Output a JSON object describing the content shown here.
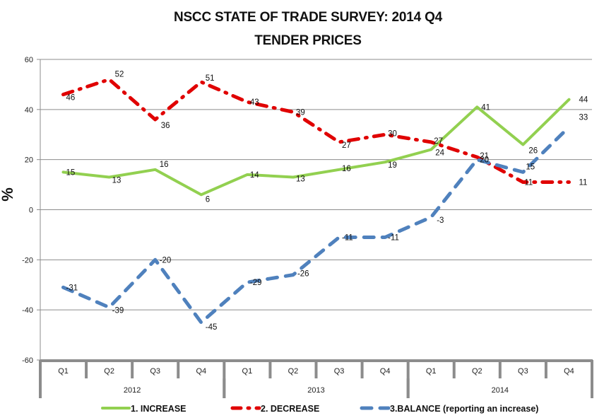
{
  "chart_data": {
    "type": "line",
    "title": "NSCC STATE OF TRADE SURVEY: 2014 Q4",
    "subtitle": "TENDER PRICES",
    "xlabel": "",
    "ylabel": "%",
    "ylim": [
      -60,
      60
    ],
    "yticks": [
      60,
      40,
      20,
      0,
      -20,
      -40,
      -60
    ],
    "grid": true,
    "legend_position": "bottom",
    "categories": [
      "Q1",
      "Q2",
      "Q3",
      "Q4",
      "Q1",
      "Q2",
      "Q3",
      "Q4",
      "Q1",
      "Q2",
      "Q3",
      "Q4"
    ],
    "category_groups": [
      {
        "label": "2012",
        "count": 4
      },
      {
        "label": "2013",
        "count": 4
      },
      {
        "label": "2014",
        "count": 4
      }
    ],
    "series": [
      {
        "name": "1. INCREASE",
        "color": "#92D050",
        "style": "solid",
        "values": [
          15,
          13,
          16,
          6,
          14,
          13,
          16,
          19,
          24,
          41,
          26,
          44
        ]
      },
      {
        "name": "2. DECREASE",
        "color": "#E00000",
        "style": "dash-dot",
        "values": [
          46,
          52,
          36,
          51,
          43,
          39,
          27,
          30,
          27,
          21,
          11,
          11
        ]
      },
      {
        "name": "3.BALANCE (reporting an increase)",
        "color": "#4F81BD",
        "style": "dash",
        "values": [
          -31,
          -39,
          -20,
          -45,
          -29,
          -26,
          -11,
          -11,
          -3,
          20,
          15,
          33
        ]
      }
    ]
  }
}
